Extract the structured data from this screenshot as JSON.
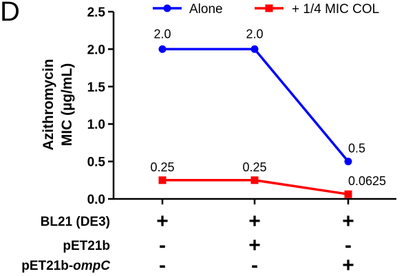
{
  "panel_label": "D",
  "chart_data": {
    "type": "line",
    "title": "",
    "xlabel": "",
    "ylabel_lines": [
      "Azithromycin",
      "MIC (µg/mL)"
    ],
    "ylim": [
      0,
      2.5
    ],
    "yticks": [
      "0.0",
      "0.5",
      "1.0",
      "1.5",
      "2.0",
      "2.5"
    ],
    "legend_position": "top",
    "categories": [
      "1",
      "2",
      "3"
    ],
    "series": [
      {
        "name": "Alone",
        "color": "#0000ff",
        "marker": "circle",
        "values": [
          2.0,
          2.0,
          0.5
        ],
        "labels": [
          "2.0",
          "2.0",
          "0.5"
        ]
      },
      {
        "name": "+ 1/4 MIC COL",
        "color": "#ff0000",
        "marker": "square",
        "values": [
          0.25,
          0.25,
          0.0625
        ],
        "labels": [
          "0.25",
          "0.25",
          "0.0625"
        ]
      }
    ],
    "condition_rows": [
      {
        "label": "BL21 (DE3)",
        "values": [
          "+",
          "+",
          "+"
        ]
      },
      {
        "label": "pET21b",
        "values": [
          "-",
          "+",
          "-"
        ]
      },
      {
        "label_parts": [
          "pET21b-",
          "ompC"
        ],
        "values": [
          "-",
          "-",
          "+"
        ]
      }
    ]
  }
}
